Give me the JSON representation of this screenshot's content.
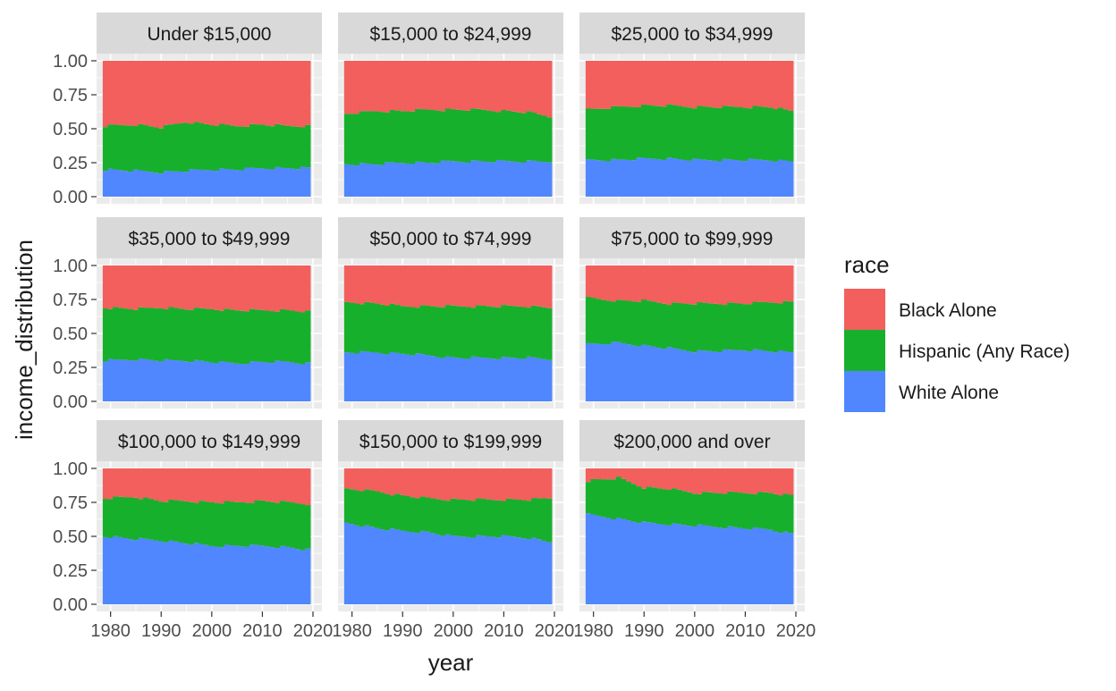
{
  "colors": {
    "black_alone": "#F25F5C",
    "hispanic": "#17B02C",
    "white_alone": "#5087FF",
    "panel_bg": "#EBEBEB",
    "strip_bg": "#D9D9D9",
    "grid": "#FFFFFF",
    "text": "#1A1A1A",
    "axis_text": "#4D4D4D"
  },
  "chart_data": {
    "type": "area",
    "layout": "facet-grid-3x3",
    "title": "",
    "xlabel": "year",
    "ylabel": "income_distribution",
    "xlim": [
      1979,
      2020
    ],
    "ylim": [
      0,
      1
    ],
    "x_ticks": [
      "1980",
      "1990",
      "2000",
      "2010",
      "2020"
    ],
    "y_ticks": [
      "0.00",
      "0.25",
      "0.50",
      "0.75",
      "1.00"
    ],
    "grid": true,
    "legend": {
      "title": "race",
      "position": "right",
      "entries": [
        {
          "label": "Black Alone",
          "color": "#F25F5C"
        },
        {
          "label": "Hispanic (Any Race)",
          "color": "#17B02C"
        },
        {
          "label": "White Alone",
          "color": "#5087FF"
        }
      ]
    },
    "stack_order": [
      "White Alone",
      "Hispanic (Any Race)",
      "Black Alone"
    ],
    "x": [
      1979,
      1985,
      1990,
      1995,
      2000,
      2005,
      2010,
      2015,
      2019
    ],
    "panels": [
      {
        "title": "Under $15,000",
        "white": [
          0.2,
          0.19,
          0.18,
          0.19,
          0.2,
          0.2,
          0.21,
          0.21,
          0.21
        ],
        "white_plus_hispanic": [
          0.52,
          0.53,
          0.51,
          0.55,
          0.53,
          0.52,
          0.53,
          0.52,
          0.52
        ]
      },
      {
        "title": "$15,000 to $24,999",
        "white": [
          0.24,
          0.24,
          0.25,
          0.25,
          0.26,
          0.26,
          0.26,
          0.26,
          0.26
        ],
        "white_plus_hispanic": [
          0.61,
          0.63,
          0.63,
          0.64,
          0.64,
          0.64,
          0.63,
          0.62,
          0.59
        ]
      },
      {
        "title": "$25,000 to $34,999",
        "white": [
          0.27,
          0.27,
          0.28,
          0.28,
          0.27,
          0.27,
          0.27,
          0.27,
          0.26
        ],
        "white_plus_hispanic": [
          0.64,
          0.66,
          0.67,
          0.67,
          0.66,
          0.66,
          0.66,
          0.66,
          0.63
        ]
      },
      {
        "title": "$35,000 to $49,999",
        "white": [
          0.3,
          0.31,
          0.3,
          0.3,
          0.29,
          0.28,
          0.29,
          0.29,
          0.28
        ],
        "white_plus_hispanic": [
          0.69,
          0.68,
          0.69,
          0.68,
          0.68,
          0.67,
          0.67,
          0.67,
          0.66
        ]
      },
      {
        "title": "$50,000 to $74,999",
        "white": [
          0.36,
          0.36,
          0.35,
          0.34,
          0.32,
          0.32,
          0.32,
          0.32,
          0.31
        ],
        "white_plus_hispanic": [
          0.73,
          0.72,
          0.7,
          0.7,
          0.7,
          0.7,
          0.7,
          0.7,
          0.69
        ]
      },
      {
        "title": "$75,000 to $99,999",
        "white": [
          0.42,
          0.43,
          0.41,
          0.39,
          0.37,
          0.37,
          0.38,
          0.37,
          0.36
        ],
        "white_plus_hispanic": [
          0.76,
          0.74,
          0.74,
          0.72,
          0.72,
          0.72,
          0.72,
          0.73,
          0.73
        ]
      },
      {
        "title": "$100,000 to $149,999",
        "white": [
          0.5,
          0.48,
          0.47,
          0.45,
          0.43,
          0.43,
          0.43,
          0.42,
          0.4
        ],
        "white_plus_hispanic": [
          0.78,
          0.79,
          0.76,
          0.76,
          0.75,
          0.75,
          0.76,
          0.75,
          0.74
        ]
      },
      {
        "title": "$150,000 to $199,999",
        "white": [
          0.6,
          0.56,
          0.54,
          0.53,
          0.5,
          0.5,
          0.5,
          0.49,
          0.46
        ],
        "white_plus_hispanic": [
          0.85,
          0.83,
          0.8,
          0.78,
          0.77,
          0.77,
          0.77,
          0.77,
          0.78
        ]
      },
      {
        "title": "$200,000 and over",
        "white": [
          0.66,
          0.63,
          0.6,
          0.59,
          0.58,
          0.57,
          0.56,
          0.55,
          0.52
        ],
        "white_plus_hispanic": [
          0.91,
          0.93,
          0.86,
          0.85,
          0.82,
          0.82,
          0.82,
          0.82,
          0.8
        ]
      }
    ]
  }
}
